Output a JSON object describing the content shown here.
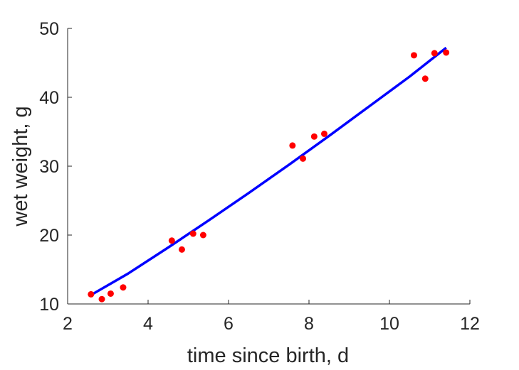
{
  "chart_data": {
    "type": "scatter",
    "xlabel": "time since birth, d",
    "ylabel": "wet weight, g",
    "xlim": [
      2,
      12
    ],
    "ylim": [
      10,
      50
    ],
    "xticks": [
      2,
      4,
      6,
      8,
      10,
      12
    ],
    "yticks": [
      10,
      20,
      30,
      40,
      50
    ],
    "grid": false,
    "colors": {
      "points": "#ff0000",
      "fit": "#0000ff",
      "axes": "#262626"
    },
    "series": [
      {
        "type": "scatter",
        "x": [
          2.58,
          2.85,
          3.07,
          3.38,
          4.59,
          4.84,
          5.12,
          5.37,
          7.59,
          7.85,
          8.13,
          8.38,
          10.61,
          10.89,
          11.12,
          11.41
        ],
        "y": [
          11.4,
          10.7,
          11.5,
          12.4,
          19.2,
          17.9,
          20.2,
          20.0,
          33.0,
          31.1,
          34.3,
          34.7,
          46.1,
          42.7,
          46.4,
          46.5
        ]
      },
      {
        "type": "line",
        "x": [
          2.58,
          3.5,
          4.5,
          5.5,
          6.5,
          7.5,
          8.5,
          9.5,
          10.5,
          11.41
        ],
        "y": [
          11.3,
          14.4,
          18.2,
          22.1,
          26.1,
          30.2,
          34.4,
          38.7,
          43.0,
          47.2
        ]
      }
    ]
  }
}
